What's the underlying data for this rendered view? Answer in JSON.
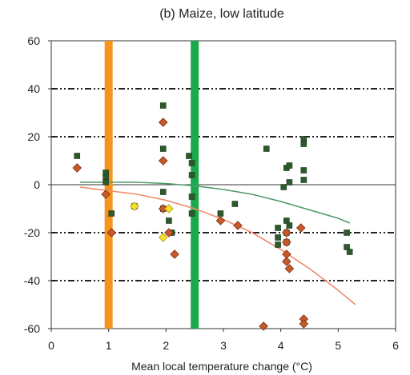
{
  "chart_data": {
    "type": "scatter",
    "title": "(b) Maize, low latitude",
    "xlabel": "Mean local temperature change (°C)",
    "ylabel": "",
    "xlim": [
      0,
      6
    ],
    "ylim": [
      -60,
      60
    ],
    "xticks": [
      0,
      1,
      2,
      3,
      4,
      5,
      6
    ],
    "yticks": [
      60,
      40,
      20,
      0,
      -20,
      -40,
      -60
    ],
    "dashed_gridlines": [
      40,
      20,
      -20,
      -40
    ],
    "zero_line": 0,
    "vertical_bands": [
      {
        "x": 1.0,
        "color": "#f7941d"
      },
      {
        "x": 2.5,
        "color": "#1aaa4b"
      }
    ],
    "series": [
      {
        "marker": "square",
        "color": "#2d5a2d",
        "stroke": "#1b3a1b",
        "points": [
          [
            0.45,
            12
          ],
          [
            0.95,
            5
          ],
          [
            0.95,
            3
          ],
          [
            0.95,
            1
          ],
          [
            1.05,
            -12
          ],
          [
            1.45,
            -9
          ],
          [
            1.95,
            33
          ],
          [
            1.95,
            15
          ],
          [
            1.95,
            -3
          ],
          [
            1.95,
            -10
          ],
          [
            2.05,
            -15
          ],
          [
            2.1,
            -20
          ],
          [
            2.4,
            12
          ],
          [
            2.45,
            9
          ],
          [
            2.45,
            4
          ],
          [
            2.45,
            -5
          ],
          [
            2.45,
            -12
          ],
          [
            2.95,
            -12
          ],
          [
            3.2,
            -8
          ],
          [
            3.75,
            15
          ],
          [
            3.95,
            -18
          ],
          [
            3.95,
            -22
          ],
          [
            3.95,
            -25
          ],
          [
            4.05,
            -1
          ],
          [
            4.1,
            7
          ],
          [
            4.1,
            -15
          ],
          [
            4.1,
            -20
          ],
          [
            4.1,
            -24
          ],
          [
            4.15,
            8
          ],
          [
            4.15,
            1
          ],
          [
            4.15,
            -17
          ],
          [
            4.4,
            19
          ],
          [
            4.4,
            17
          ],
          [
            4.4,
            6
          ],
          [
            4.4,
            2
          ],
          [
            5.15,
            -20
          ],
          [
            5.15,
            -26
          ],
          [
            5.2,
            -28
          ]
        ]
      },
      {
        "marker": "diamond",
        "color": "#c85a2a",
        "stroke": "#7a2e10",
        "points": [
          [
            0.45,
            7
          ],
          [
            0.95,
            -4
          ],
          [
            1.05,
            -20
          ],
          [
            1.95,
            26
          ],
          [
            1.95,
            10
          ],
          [
            1.95,
            -10
          ],
          [
            2.05,
            -20
          ],
          [
            2.15,
            -29
          ],
          [
            2.95,
            -15
          ],
          [
            3.25,
            -17
          ],
          [
            3.7,
            -59
          ],
          [
            4.1,
            -20
          ],
          [
            4.1,
            -24
          ],
          [
            4.1,
            -29
          ],
          [
            4.1,
            -32
          ],
          [
            4.15,
            -35
          ],
          [
            4.35,
            -18
          ],
          [
            4.4,
            -56
          ],
          [
            4.4,
            -58
          ]
        ]
      },
      {
        "marker": "diamond",
        "color": "#f5e030",
        "stroke": "#b89a10",
        "points": [
          [
            1.45,
            -9
          ],
          [
            1.95,
            -22
          ],
          [
            2.05,
            -10
          ]
        ]
      }
    ],
    "fit_lines": [
      {
        "color": "#4f9a6a",
        "points": [
          [
            0.5,
            1
          ],
          [
            1.0,
            1
          ],
          [
            1.5,
            1
          ],
          [
            2.0,
            0.5
          ],
          [
            2.5,
            -0.5
          ],
          [
            3.0,
            -2
          ],
          [
            3.5,
            -4
          ],
          [
            4.0,
            -7
          ],
          [
            4.5,
            -10.5
          ],
          [
            5.0,
            -14
          ],
          [
            5.2,
            -16
          ]
        ]
      },
      {
        "color": "#f28a68",
        "points": [
          [
            0.5,
            -1
          ],
          [
            1.0,
            -2.5
          ],
          [
            1.5,
            -4
          ],
          [
            2.0,
            -6.5
          ],
          [
            2.5,
            -10
          ],
          [
            3.0,
            -14.5
          ],
          [
            3.5,
            -20
          ],
          [
            4.0,
            -27
          ],
          [
            4.5,
            -35
          ],
          [
            5.0,
            -44
          ],
          [
            5.3,
            -50
          ]
        ]
      }
    ],
    "grid": false,
    "legend": "none"
  }
}
